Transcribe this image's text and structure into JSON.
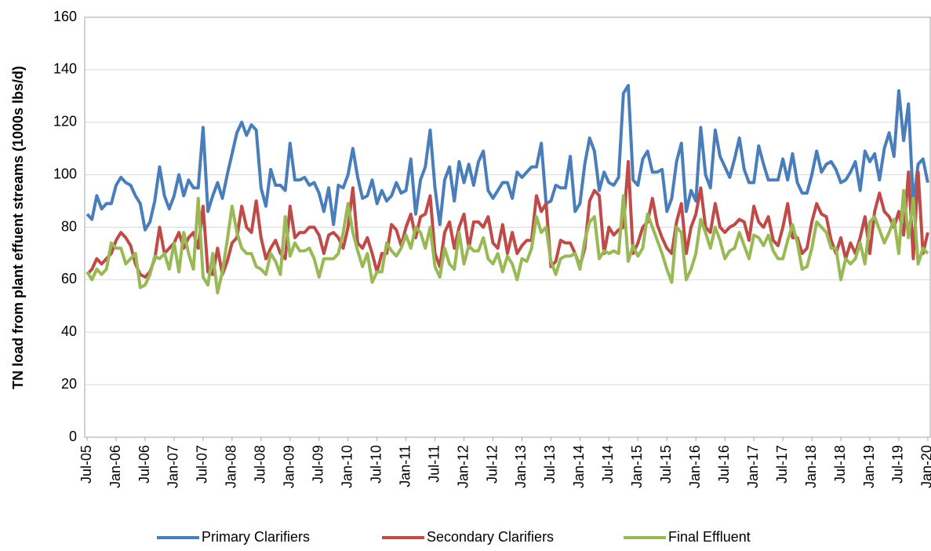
{
  "chart_data": {
    "type": "line",
    "y_label": "TN load from plant effuent streams (1000s lbs/d)",
    "categories": [
      "Jul-05",
      null,
      null,
      null,
      null,
      null,
      "Jan-06",
      null,
      null,
      null,
      null,
      null,
      "Jul-06",
      null,
      null,
      null,
      null,
      null,
      "Jan-07",
      null,
      null,
      null,
      null,
      null,
      "Jul-07",
      null,
      null,
      null,
      null,
      null,
      "Jan-08",
      null,
      null,
      null,
      null,
      null,
      "Jul-08",
      null,
      null,
      null,
      null,
      null,
      "Jan-09",
      null,
      null,
      null,
      null,
      null,
      "Jul-09",
      null,
      null,
      null,
      null,
      null,
      "Jan-10",
      null,
      null,
      null,
      null,
      null,
      "Jul-10",
      null,
      null,
      null,
      null,
      null,
      "Jan-11",
      null,
      null,
      null,
      null,
      null,
      "Jul-11",
      null,
      null,
      null,
      null,
      null,
      "Jan-12",
      null,
      null,
      null,
      null,
      null,
      "Jul-12",
      null,
      null,
      null,
      null,
      null,
      "Jan-13",
      null,
      null,
      null,
      null,
      null,
      "Jul-13",
      null,
      null,
      null,
      null,
      null,
      "Jan-14",
      null,
      null,
      null,
      null,
      null,
      "Jul-14",
      null,
      null,
      null,
      null,
      null,
      "Jan-15",
      null,
      null,
      null,
      null,
      null,
      "Jul-15",
      null,
      null,
      null,
      null,
      null,
      "Jan-16",
      null,
      null,
      null,
      null,
      null,
      "Jul-16",
      null,
      null,
      null,
      null,
      null,
      "Jan-17",
      null,
      null,
      null,
      null,
      null,
      "Jul-17",
      null,
      null,
      null,
      null,
      null,
      "Jan-18",
      null,
      null,
      null,
      null,
      null,
      "Jul-18",
      null,
      null,
      null,
      null,
      null,
      "Jan-19",
      null,
      null,
      null,
      null,
      null,
      "Jul-19",
      null,
      null,
      null,
      null,
      null,
      "Jan-20"
    ],
    "series": [
      {
        "name": "Primary Clarifiers",
        "color": "#4a7ebb",
        "values": [
          85,
          83,
          92,
          87,
          89,
          89,
          96,
          99,
          97,
          96,
          92,
          89,
          79,
          82,
          90,
          103,
          92,
          87,
          92,
          100,
          92,
          98,
          95,
          95,
          118,
          86,
          92,
          97,
          91,
          100,
          108,
          116,
          120,
          115,
          119,
          117,
          95,
          88,
          102,
          96,
          96,
          94,
          112,
          98,
          98,
          99,
          96,
          97,
          93,
          86,
          95,
          81,
          96,
          95,
          100,
          110,
          99,
          91,
          92,
          98,
          89,
          94,
          90,
          92,
          97,
          93,
          94,
          106,
          85,
          98,
          103,
          117,
          95,
          81,
          98,
          103,
          90,
          105,
          97,
          104,
          96,
          105,
          109,
          94,
          91,
          94,
          97,
          97,
          91,
          101,
          99,
          101,
          103,
          103,
          112,
          89,
          90,
          96,
          95,
          95,
          107,
          86,
          89,
          104,
          114,
          109,
          94,
          101,
          97,
          96,
          99,
          131,
          134,
          98,
          96,
          106,
          109,
          101,
          101,
          102,
          86,
          91,
          105,
          112,
          86,
          94,
          90,
          118,
          100,
          95,
          117,
          107,
          103,
          99,
          106,
          114,
          102,
          97,
          97,
          111,
          104,
          98,
          98,
          98,
          106,
          98,
          108,
          97,
          93,
          93,
          100,
          109,
          101,
          104,
          105,
          102,
          97,
          98,
          101,
          105,
          94,
          109,
          105,
          108,
          98,
          110,
          116,
          107,
          132,
          113,
          127,
          89,
          104,
          106,
          97
        ]
      },
      {
        "name": "Secondary Clarifiers",
        "color": "#be4b48",
        "values": [
          62,
          64,
          68,
          66,
          68,
          70,
          75,
          78,
          76,
          73,
          66,
          62,
          61,
          63,
          68,
          80,
          70,
          72,
          74,
          78,
          72,
          76,
          78,
          72,
          88,
          63,
          62,
          72,
          62,
          67,
          74,
          76,
          88,
          80,
          78,
          90,
          76,
          68,
          72,
          75,
          70,
          68,
          88,
          76,
          78,
          78,
          80,
          80,
          77,
          70,
          77,
          78,
          76,
          72,
          80,
          95,
          74,
          72,
          76,
          70,
          63,
          70,
          70,
          81,
          79,
          73,
          80,
          85,
          76,
          84,
          85,
          92,
          70,
          65,
          78,
          82,
          72,
          80,
          85,
          72,
          82,
          82,
          80,
          84,
          74,
          72,
          81,
          70,
          78,
          70,
          73,
          75,
          75,
          92,
          86,
          89,
          65,
          67,
          75,
          74,
          74,
          70,
          65,
          72,
          90,
          94,
          92,
          70,
          80,
          77,
          79,
          80,
          105,
          70,
          74,
          80,
          82,
          91,
          81,
          76,
          72,
          70,
          82,
          89,
          70,
          80,
          85,
          95,
          80,
          78,
          89,
          80,
          78,
          80,
          81,
          83,
          82,
          75,
          88,
          82,
          80,
          84,
          75,
          73,
          80,
          89,
          76,
          76,
          70,
          72,
          82,
          89,
          85,
          84,
          75,
          70,
          76,
          68,
          74,
          70,
          76,
          84,
          70,
          86,
          93,
          86,
          84,
          80,
          86,
          77,
          101,
          68,
          101,
          70,
          78
        ]
      },
      {
        "name": "Final Effluent",
        "color": "#98b954",
        "values": [
          63,
          60,
          64,
          62,
          64,
          74,
          72,
          72,
          66,
          68,
          70,
          57,
          58,
          62,
          69,
          68,
          70,
          64,
          74,
          63,
          78,
          70,
          64,
          91,
          61,
          58,
          70,
          55,
          63,
          75,
          88,
          78,
          72,
          70,
          70,
          65,
          64,
          62,
          70,
          67,
          62,
          84,
          69,
          74,
          71,
          71,
          72,
          68,
          61,
          68,
          68,
          68,
          70,
          78,
          89,
          78,
          71,
          65,
          70,
          59,
          63,
          63,
          74,
          71,
          69,
          72,
          77,
          72,
          80,
          78,
          72,
          80,
          65,
          61,
          72,
          66,
          64,
          78,
          66,
          73,
          71,
          71,
          76,
          68,
          66,
          70,
          63,
          69,
          66,
          60,
          68,
          67,
          72,
          84,
          78,
          80,
          67,
          62,
          68,
          69,
          69,
          70,
          64,
          75,
          82,
          84,
          68,
          71,
          70,
          71,
          70,
          92,
          67,
          73,
          69,
          72,
          85,
          80,
          75,
          70,
          64,
          59,
          80,
          78,
          60,
          64,
          70,
          83,
          78,
          72,
          80,
          75,
          68,
          71,
          72,
          78,
          73,
          68,
          77,
          76,
          73,
          77,
          71,
          68,
          68,
          75,
          81,
          74,
          64,
          65,
          72,
          82,
          80,
          78,
          72,
          72,
          60,
          68,
          66,
          68,
          74,
          66,
          82,
          84,
          79,
          74,
          78,
          83,
          70,
          94,
          76,
          91,
          66,
          72,
          70
        ]
      }
    ],
    "ylim": [
      0,
      160
    ],
    "yticks": [
      0,
      20,
      40,
      60,
      80,
      100,
      120,
      140,
      160
    ],
    "grid": true,
    "legend": "bottom"
  }
}
